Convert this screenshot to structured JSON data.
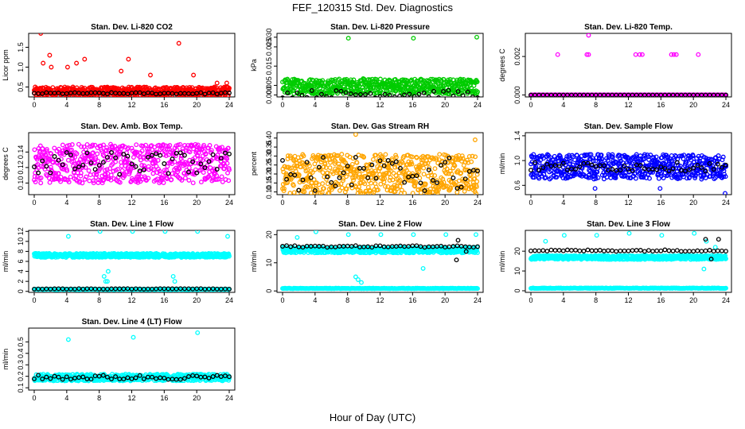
{
  "figure": {
    "title": "FEF_120315  Std. Dev. Diagnostics",
    "xlabel": "Hour of Day (UTC)"
  },
  "colors": {
    "co2": "#ff0000",
    "pressure": "#00cc00",
    "temp": "#ff00ff",
    "ambbox": "#ff00ff",
    "rh": "#ffa500",
    "flow": "#0000ff",
    "line": "#00ffff",
    "overlay": "#000000"
  },
  "chart_data": [
    {
      "id": "co2",
      "type": "scatter",
      "title": "Stan. Dev. Li-820 CO2",
      "ylabel": "Licor ppm",
      "xlim": [
        0,
        24
      ],
      "xticks": [
        0,
        4,
        8,
        12,
        16,
        20,
        24
      ],
      "ylim": [
        0.25,
        1.85
      ],
      "yticks": [
        0.5,
        1.0,
        1.5
      ],
      "ytick_labels": [
        "0.5",
        "1.0",
        "1.5"
      ],
      "series": [
        {
          "color_key": "co2",
          "base": 0.38,
          "spread": 0.12,
          "outliers": [
            [
              0.8,
              1.85
            ],
            [
              1.1,
              1.1
            ],
            [
              1.9,
              1.3
            ],
            [
              2.1,
              1.0
            ],
            [
              4.1,
              1.0
            ],
            [
              5.2,
              1.1
            ],
            [
              6.2,
              1.2
            ],
            [
              10.7,
              0.9
            ],
            [
              11.6,
              1.2
            ],
            [
              14.3,
              0.8
            ],
            [
              17.8,
              1.6
            ],
            [
              19.6,
              0.8
            ],
            [
              22.5,
              0.6
            ],
            [
              23.7,
              0.6
            ]
          ]
        },
        {
          "color_key": "overlay",
          "base": 0.34,
          "spread": 0.02,
          "step": 0.5,
          "outliers": []
        }
      ]
    },
    {
      "id": "pressure",
      "type": "scatter",
      "title": "Stan. Dev. Li-820 Pressure",
      "ylabel": "kPa",
      "xlim": [
        0,
        24
      ],
      "xticks": [
        0,
        4,
        8,
        12,
        16,
        20,
        24
      ],
      "ylim": [
        -0.001,
        0.032
      ],
      "yticks": [
        0.0,
        0.005,
        0.015,
        0.025,
        0.03
      ],
      "ytick_labels": [
        "0.000",
        "0.005",
        "0.015",
        "0.025",
        "0.030"
      ],
      "series": [
        {
          "color_key": "pressure",
          "base": 0.0045,
          "spread": 0.004,
          "outliers": [
            [
              8.1,
              0.0295
            ],
            [
              16.1,
              0.0295
            ],
            [
              23.9,
              0.03
            ]
          ]
        },
        {
          "color_key": "overlay",
          "base": 0.0005,
          "spread": 0.002,
          "step": 0.6,
          "outliers": []
        }
      ]
    },
    {
      "id": "temp",
      "type": "scatter",
      "title": "Stan. Dev. Li-820 Temp.",
      "ylabel": "degrees C",
      "xlim": [
        0,
        24
      ],
      "xticks": [
        0,
        4,
        8,
        12,
        16,
        20,
        24
      ],
      "ylim": [
        -0.0001,
        0.0032
      ],
      "yticks": [
        0.0,
        0.002
      ],
      "ytick_labels": [
        "0.000",
        "0.002"
      ],
      "series": [
        {
          "color_key": "temp",
          "base": 0.0,
          "spread": 0.0,
          "outliers": [
            [
              3.3,
              0.0021
            ],
            [
              6.9,
              0.0021
            ],
            [
              7.1,
              0.0021
            ],
            [
              7.1,
              0.0031
            ],
            [
              12.9,
              0.0021
            ],
            [
              13.4,
              0.0021
            ],
            [
              13.7,
              0.0021
            ],
            [
              17.3,
              0.0021
            ],
            [
              17.6,
              0.0021
            ],
            [
              17.9,
              0.0021
            ],
            [
              20.6,
              0.0021
            ]
          ]
        },
        {
          "color_key": "overlay",
          "base": 0.0,
          "spread": 0.0,
          "step": 0.5,
          "outliers": []
        }
      ]
    },
    {
      "id": "ambbox",
      "type": "scatter",
      "title": "Stan. Dev. Amb. Box Temp.",
      "ylabel": "degrees C",
      "xlim": [
        0,
        24
      ],
      "xticks": [
        0,
        4,
        8,
        12,
        16,
        20,
        24
      ],
      "ylim": [
        0.085,
        0.165
      ],
      "yticks": [
        0.1,
        0.12,
        0.14
      ],
      "ytick_labels": [
        "0.10",
        "0.12",
        "0.14"
      ],
      "series": [
        {
          "color_key": "ambbox",
          "base": 0.125,
          "spread": 0.025,
          "outliers": []
        },
        {
          "color_key": "overlay",
          "base": 0.125,
          "spread": 0.015,
          "step": 0.5,
          "outliers": []
        }
      ]
    },
    {
      "id": "rh",
      "type": "scatter",
      "title": "Stan. Dev. Gas Stream RH",
      "ylabel": "percent",
      "xlim": [
        0,
        24
      ],
      "xticks": [
        0,
        4,
        8,
        12,
        16,
        20,
        24
      ],
      "ylim": [
        0.085,
        0.43
      ],
      "yticks": [
        0.1,
        0.15,
        0.2,
        0.25,
        0.3,
        0.35,
        0.4
      ],
      "ytick_labels": [
        "0.10",
        "0.15",
        "0.20",
        "0.25",
        "0.30",
        "0.35",
        "0.40"
      ],
      "series": [
        {
          "color_key": "rh",
          "base": 0.2,
          "spread": 0.11,
          "outliers": [
            [
              9.0,
              0.42
            ],
            [
              23.7,
              0.39
            ]
          ]
        },
        {
          "color_key": "overlay",
          "base": 0.2,
          "spread": 0.1,
          "step": 0.5,
          "outliers": []
        }
      ]
    },
    {
      "id": "flow",
      "type": "scatter",
      "title": "Stan. Dev. Sample Flow",
      "ylabel": "ml/min",
      "xlim": [
        0,
        24
      ],
      "xticks": [
        0,
        4,
        8,
        12,
        16,
        20,
        24
      ],
      "ylim": [
        0.45,
        1.45
      ],
      "yticks": [
        0.6,
        1.0,
        1.4
      ],
      "ytick_labels": [
        "0.6",
        "1.0",
        "1.4"
      ],
      "series": [
        {
          "color_key": "flow",
          "base": 0.9,
          "spread": 0.2,
          "outliers": [
            [
              7.9,
              0.55
            ],
            [
              15.9,
              0.55
            ],
            [
              23.9,
              0.47
            ]
          ]
        },
        {
          "color_key": "overlay",
          "base": 0.9,
          "spread": 0.07,
          "step": 0.5,
          "outliers": []
        }
      ]
    },
    {
      "id": "line1",
      "type": "scatter",
      "title": "Stan. Dev. Line 1 Flow",
      "ylabel": "ml/min",
      "xlim": [
        0,
        24
      ],
      "xticks": [
        0,
        4,
        8,
        12,
        16,
        20,
        24
      ],
      "ylim": [
        -0.2,
        12.2
      ],
      "yticks": [
        0,
        2,
        4,
        6,
        8,
        10,
        12
      ],
      "ytick_labels": [
        "0",
        "2",
        "4",
        "6",
        "8",
        "10",
        "12"
      ],
      "series": [
        {
          "color_key": "line",
          "base": 7.2,
          "spread": 0.4,
          "outliers": [
            [
              4.2,
              11
            ],
            [
              8.1,
              12
            ],
            [
              8.6,
              3
            ],
            [
              8.8,
              2
            ],
            [
              9.0,
              2
            ],
            [
              9.1,
              4
            ],
            [
              12.1,
              12
            ],
            [
              16.1,
              12
            ],
            [
              17.1,
              3
            ],
            [
              17.3,
              2
            ],
            [
              20.1,
              12
            ],
            [
              23.8,
              11
            ]
          ]
        },
        {
          "color_key": "line",
          "base": 0.4,
          "spread": 0.05,
          "step": 0.1,
          "outliers": []
        },
        {
          "color_key": "overlay",
          "base": 0.5,
          "spread": 0.05,
          "step": 0.5,
          "outliers": []
        }
      ]
    },
    {
      "id": "line2",
      "type": "scatter",
      "title": "Stan. Dev. Line 2 Flow",
      "ylabel": "ml/min",
      "xlim": [
        0,
        24
      ],
      "xticks": [
        0,
        4,
        8,
        12,
        16,
        20,
        24
      ],
      "ylim": [
        -0.5,
        21.5
      ],
      "yticks": [
        0,
        10,
        20
      ],
      "ytick_labels": [
        "0",
        "10",
        "20"
      ],
      "series": [
        {
          "color_key": "line",
          "base": 14.5,
          "spread": 1.0,
          "outliers": [
            [
              1.8,
              19
            ],
            [
              4.1,
              21
            ],
            [
              8.1,
              20
            ],
            [
              9.0,
              5
            ],
            [
              9.3,
              4
            ],
            [
              9.7,
              3
            ],
            [
              12.1,
              20
            ],
            [
              16.1,
              20
            ],
            [
              17.3,
              8
            ],
            [
              20.1,
              20
            ],
            [
              23.8,
              20
            ]
          ]
        },
        {
          "color_key": "line",
          "base": 0.9,
          "spread": 0.1,
          "step": 0.1,
          "outliers": []
        },
        {
          "color_key": "overlay",
          "base": 15.8,
          "spread": 0.3,
          "step": 0.5,
          "outliers": [
            [
              21.6,
              18
            ],
            [
              21.4,
              11
            ],
            [
              22.6,
              14
            ]
          ]
        }
      ]
    },
    {
      "id": "line3",
      "type": "scatter",
      "title": "Stan. Dev. Line 3 Flow",
      "ylabel": "ml/min",
      "xlim": [
        0,
        24
      ],
      "xticks": [
        0,
        4,
        8,
        12,
        16,
        20,
        24
      ],
      "ylim": [
        -0.8,
        30.5
      ],
      "yticks": [
        0,
        10,
        20
      ],
      "ytick_labels": [
        "0",
        "10",
        "20"
      ],
      "series": [
        {
          "color_key": "line",
          "base": 16.8,
          "spread": 1.0,
          "outliers": [
            [
              1.8,
              25
            ],
            [
              4.1,
              28
            ],
            [
              8.1,
              28
            ],
            [
              12.1,
              29
            ],
            [
              16.1,
              28
            ],
            [
              20.1,
              29
            ],
            [
              21.6,
              25
            ],
            [
              22.7,
              22
            ],
            [
              21.3,
              11
            ]
          ]
        },
        {
          "color_key": "line",
          "base": 1.3,
          "spread": 0.15,
          "step": 0.1,
          "outliers": []
        },
        {
          "color_key": "overlay",
          "base": 20.3,
          "spread": 0.4,
          "step": 0.5,
          "outliers": [
            [
              21.5,
              26
            ],
            [
              22.2,
              16
            ],
            [
              23.1,
              26
            ]
          ]
        }
      ]
    },
    {
      "id": "line4",
      "type": "scatter",
      "title": "Stan. Dev. Line 4 (LT) Flow",
      "ylabel": "ml/min",
      "xlim": [
        0,
        24
      ],
      "xticks": [
        0,
        4,
        8,
        12,
        16,
        20,
        24
      ],
      "ylim": [
        0.08,
        0.62
      ],
      "yticks": [
        0.1,
        0.2,
        0.3,
        0.4,
        0.5
      ],
      "ytick_labels": [
        "0.1",
        "0.2",
        "0.3",
        "0.4",
        "0.5"
      ],
      "series": [
        {
          "color_key": "line",
          "base": 0.19,
          "spread": 0.03,
          "outliers": [
            [
              4.2,
              0.52
            ],
            [
              12.2,
              0.54
            ],
            [
              20.1,
              0.58
            ]
          ]
        },
        {
          "color_key": "overlay",
          "base": 0.19,
          "spread": 0.02,
          "step": 0.5,
          "outliers": []
        }
      ]
    }
  ]
}
